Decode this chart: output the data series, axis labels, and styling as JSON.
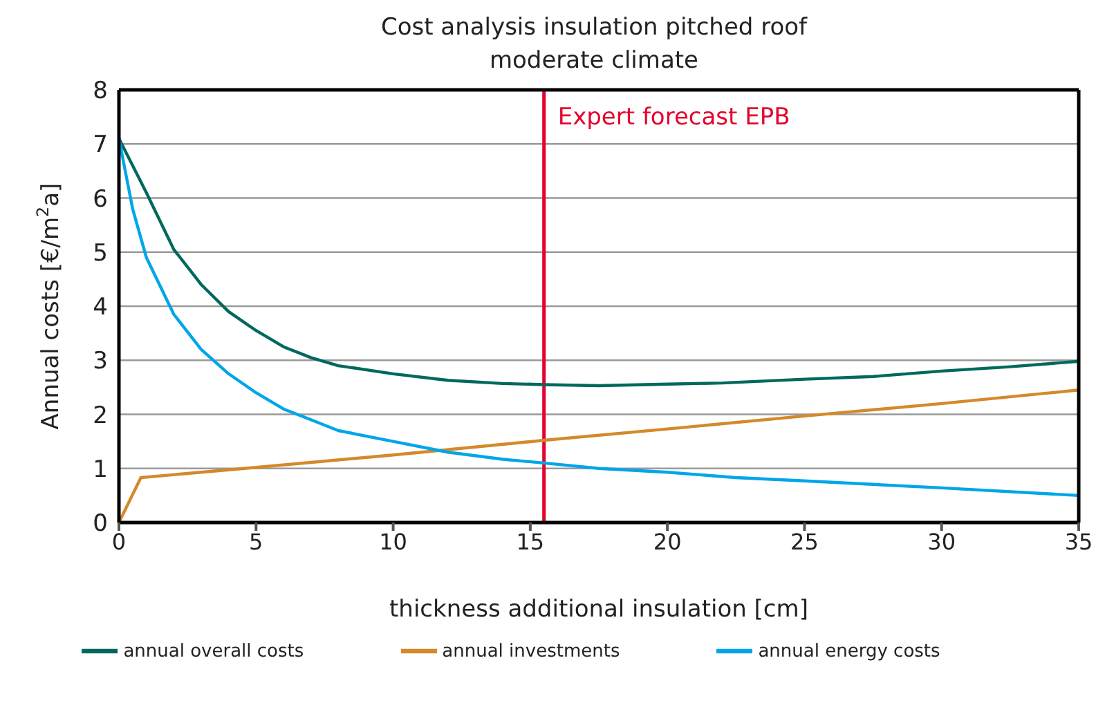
{
  "chart_data": {
    "type": "line",
    "title": "Cost analysis insulation pitched roof\nmoderate climate",
    "xlabel": "thickness additional insulation [cm]",
    "ylabel": "Annual costs [€/m$^{2}$a]",
    "xlim": [
      0,
      35
    ],
    "xticks": [
      0,
      5,
      10,
      15,
      20,
      25,
      30,
      35
    ],
    "ylim": [
      0,
      8
    ],
    "yticks": [
      0,
      1,
      2,
      3,
      4,
      5,
      6,
      7,
      8
    ],
    "grid": "y",
    "legend": "bottom",
    "marker": "none",
    "line_style": "solid",
    "ref_lines": [
      {
        "axis": "x",
        "value": 15.5,
        "label": "Expert forecast EPB",
        "color": "#e4032e"
      }
    ],
    "series": [
      {
        "name": "annual overall costs",
        "color": "#00695c",
        "x": [
          0,
          1,
          2,
          3,
          4,
          5,
          6,
          7,
          8,
          10,
          12,
          14,
          15.5,
          17.5,
          20,
          22,
          25,
          27.5,
          30,
          32.5,
          35
        ],
        "values": [
          7.1,
          6.1,
          5.05,
          4.4,
          3.9,
          3.55,
          3.25,
          3.05,
          2.9,
          2.75,
          2.63,
          2.57,
          2.55,
          2.53,
          2.56,
          2.58,
          2.65,
          2.7,
          2.8,
          2.88,
          2.98
        ]
      },
      {
        "name": "annual investments",
        "color": "#d4892a",
        "x": [
          0,
          0.8,
          5,
          10,
          15.5,
          20,
          25,
          30,
          35
        ],
        "values": [
          0,
          0.83,
          1.02,
          1.25,
          1.52,
          1.73,
          1.97,
          2.2,
          2.45
        ]
      },
      {
        "name": "annual energy costs",
        "color": "#00a6e8",
        "x": [
          0,
          0.5,
          1,
          2,
          3,
          4,
          5,
          6,
          7,
          8,
          10,
          12,
          14,
          15.5,
          17.5,
          20,
          22.5,
          25,
          30,
          35
        ],
        "values": [
          7.1,
          5.8,
          4.9,
          3.85,
          3.2,
          2.75,
          2.4,
          2.1,
          1.9,
          1.7,
          1.5,
          1.3,
          1.17,
          1.1,
          1.0,
          0.93,
          0.83,
          0.77,
          0.64,
          0.5
        ]
      }
    ]
  }
}
